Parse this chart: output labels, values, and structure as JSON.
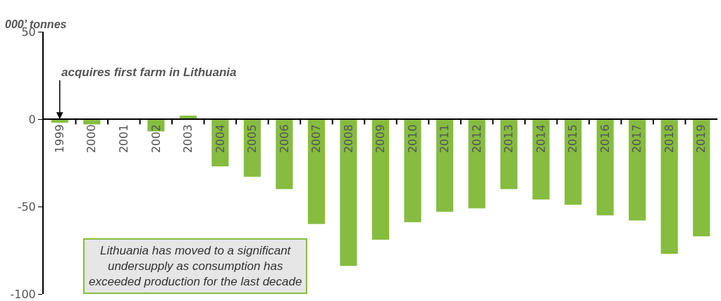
{
  "chart_data": {
    "type": "bar",
    "ylabel": "000’ tonnes",
    "categories": [
      "1999",
      "2000",
      "2001",
      "2002",
      "2003",
      "2004",
      "2005",
      "2006",
      "2007",
      "2008",
      "2009",
      "2010",
      "2011",
      "2012",
      "2013",
      "2014",
      "2015",
      "2016",
      "2017",
      "2018",
      "2019"
    ],
    "values": [
      -2,
      -3,
      0,
      -7,
      2,
      -27,
      -33,
      -40,
      -60,
      -84,
      -69,
      -59,
      -53,
      -51,
      -40,
      -46,
      -49,
      -55,
      -58,
      -77,
      -67
    ],
    "color": "#86bc40",
    "ylim": [
      -100,
      50
    ],
    "yticks": [
      -100,
      -50,
      0,
      50
    ],
    "grid": false,
    "annotations": [
      {
        "text": "acquires first farm in Lithuania",
        "x": "1999",
        "y": 0
      },
      "Lithuania has moved to a significant\nundersupply as consumption has\nexceeded production for the last decade"
    ]
  }
}
